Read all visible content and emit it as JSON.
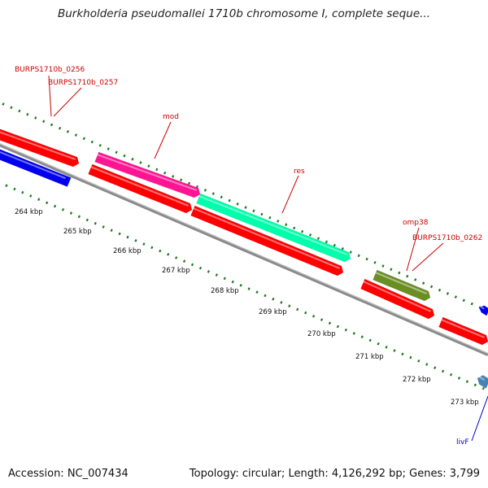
{
  "title": "Burkholderia pseudomallei 1710b chromosome I, complete seque...",
  "footer": {
    "accession": "Accession: NC_007434",
    "topology": "Topology: circular; Length: 4,126,292 bp; Genes: 3,799"
  },
  "colors": {
    "forward_gene": "#ff0000",
    "reverse_gene": "#0000ee",
    "mod_gene": "#ff1493",
    "res_gene": "#00ffaa",
    "omp38_gene": "#6b8e23",
    "livF_gene": "#4682b4",
    "backbone": "#8a8a8a",
    "tick": "#1e7a1e",
    "label_red": "#cc0000",
    "label_blue": "#0000cc"
  },
  "axis_ticks": [
    {
      "label": "264 kbp"
    },
    {
      "label": "265 kbp"
    },
    {
      "label": "266 kbp"
    },
    {
      "label": "267 kbp"
    },
    {
      "label": "268 kbp"
    },
    {
      "label": "269 kbp"
    },
    {
      "label": "270 kbp"
    },
    {
      "label": "271 kbp"
    },
    {
      "label": "272 kbp"
    },
    {
      "label": "273 kbp"
    }
  ],
  "gene_labels": [
    {
      "text": "BURPS1710b_0256",
      "color": "label_red"
    },
    {
      "text": "BURPS1710b_0257",
      "color": "label_red"
    },
    {
      "text": "mod",
      "color": "label_red"
    },
    {
      "text": "res",
      "color": "label_red"
    },
    {
      "text": "omp38",
      "color": "label_red"
    },
    {
      "text": "BURPS1710b_0262",
      "color": "label_red"
    },
    {
      "text": "livF",
      "color": "label_blue"
    }
  ]
}
